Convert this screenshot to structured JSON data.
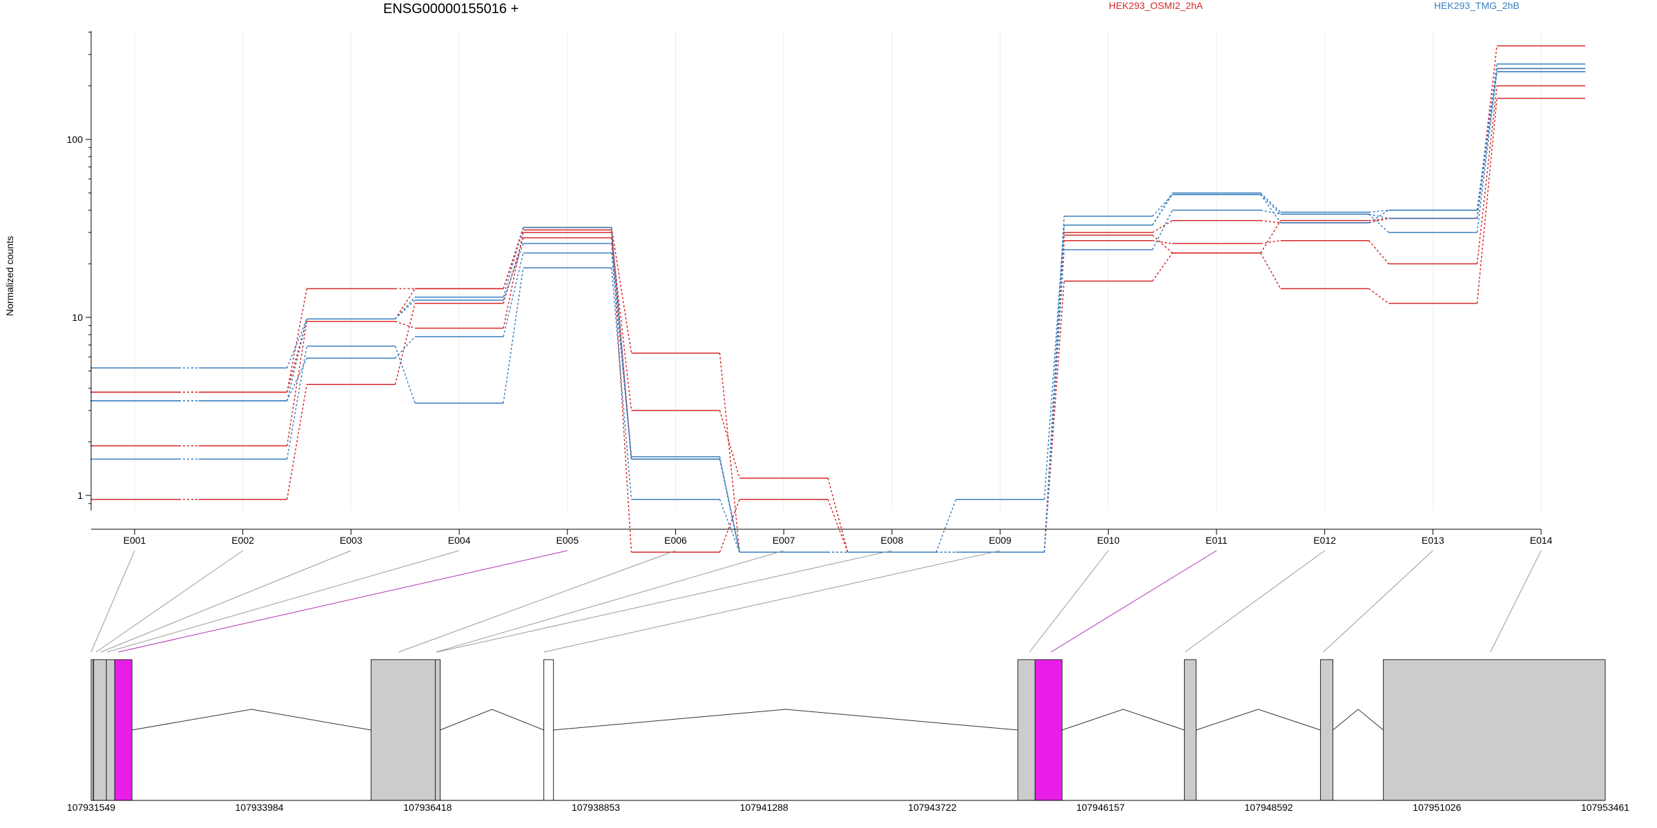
{
  "chart_data": {
    "type": "line",
    "title": "ENSG00000155016 +",
    "ylabel": "Normalized counts",
    "y_scale": "log",
    "y_ticks": [
      1,
      10,
      100
    ],
    "grid": true,
    "legend_placement": "top-right",
    "x_categories": [
      "E001",
      "E002",
      "E003",
      "E004",
      "E005",
      "E006",
      "E007",
      "E008",
      "E009",
      "E010",
      "E011",
      "E012",
      "E013",
      "E014"
    ],
    "colors": {
      "HEK293_OSMI2_2hA": "#d62728",
      "HEK293_TMG_2hB": "#3a7fbf",
      "highlight": "#e81ee8",
      "exon_fill": "#cccccc"
    },
    "series": [
      {
        "name": "HEK293_OSMI2_2hA",
        "color": "#d62728",
        "values": [
          1.9,
          1.9,
          9.5,
          8.7,
          30,
          0.48,
          0.95,
          0.48,
          0.48,
          27,
          26,
          27,
          20,
          200
        ]
      },
      {
        "name": "HEK293_OSMI2_2hA",
        "color": "#d62728",
        "values": [
          0.95,
          0.95,
          4.2,
          12,
          28,
          3.0,
          1.25,
          0.48,
          0.48,
          30,
          35,
          34,
          36,
          250
        ]
      },
      {
        "name": "HEK293_OSMI2_2hA",
        "color": "#d62728",
        "values": [
          3.8,
          3.8,
          14.5,
          14.5,
          32,
          6.3,
          0.48,
          0.48,
          0.48,
          16,
          23,
          14.5,
          12,
          170
        ]
      },
      {
        "name": "HEK293_OSMI2_2hA",
        "color": "#d62728",
        "values": [
          3.8,
          3.8,
          9.8,
          14.5,
          31,
          1.6,
          0.48,
          0.48,
          0.48,
          29,
          23,
          35,
          36,
          335
        ]
      },
      {
        "name": "HEK293_TMG_2hB",
        "color": "#3a7fbf",
        "values": [
          5.2,
          5.2,
          9.8,
          12.5,
          26,
          1.6,
          0.48,
          0.48,
          0.95,
          33,
          50,
          39,
          40,
          265
        ]
      },
      {
        "name": "HEK293_TMG_2hB",
        "color": "#3a7fbf",
        "values": [
          1.6,
          1.6,
          6.9,
          3.3,
          19,
          0.95,
          0.48,
          0.48,
          0.48,
          24,
          40,
          38,
          36,
          240
        ]
      },
      {
        "name": "HEK293_TMG_2hB",
        "color": "#3a7fbf",
        "values": [
          3.4,
          3.4,
          5.9,
          7.8,
          23,
          1.65,
          0.48,
          0.48,
          0.48,
          37,
          49,
          38,
          30,
          240
        ]
      },
      {
        "name": "HEK293_TMG_2hB",
        "color": "#3a7fbf",
        "values": [
          3.4,
          3.4,
          9.8,
          13,
          32,
          1.6,
          0.48,
          0.48,
          0.48,
          33,
          49,
          34,
          40,
          250
        ]
      }
    ],
    "gene_model": {
      "coordinate_ticks": [
        "107931549",
        "107933984",
        "107936418",
        "107938853",
        "107941288",
        "107943722",
        "107946157",
        "107948592",
        "107951026",
        "107953461"
      ],
      "region": [
        107931549,
        107953461
      ],
      "exons": [
        {
          "start": 107931549,
          "end": 107931579,
          "fill": "gray"
        },
        {
          "start": 107931585,
          "end": 107931770,
          "fill": "gray"
        },
        {
          "start": 107931770,
          "end": 107931890,
          "fill": "gray"
        },
        {
          "start": 107931890,
          "end": 107932140,
          "fill": "magenta"
        },
        {
          "start": 107935600,
          "end": 107936530,
          "fill": "gray"
        },
        {
          "start": 107936530,
          "end": 107936600,
          "fill": "gray"
        },
        {
          "start": 107938100,
          "end": 107938240,
          "fill": "white"
        },
        {
          "start": 107944960,
          "end": 107945210,
          "fill": "gray"
        },
        {
          "start": 107945210,
          "end": 107945600,
          "fill": "magenta"
        },
        {
          "start": 107947370,
          "end": 107947540,
          "fill": "gray"
        },
        {
          "start": 107949340,
          "end": 107949520,
          "fill": "gray"
        },
        {
          "start": 107950250,
          "end": 107953461,
          "fill": "gray"
        }
      ],
      "exon_bin_positions": [
        107931549,
        107931620,
        107931690,
        107931780,
        107931940,
        107936000,
        107936540,
        107936560,
        107938100,
        107945130,
        107945440,
        107947380,
        107949380,
        107951800
      ],
      "highlighted_bins": [
        "E005",
        "E011"
      ]
    }
  }
}
